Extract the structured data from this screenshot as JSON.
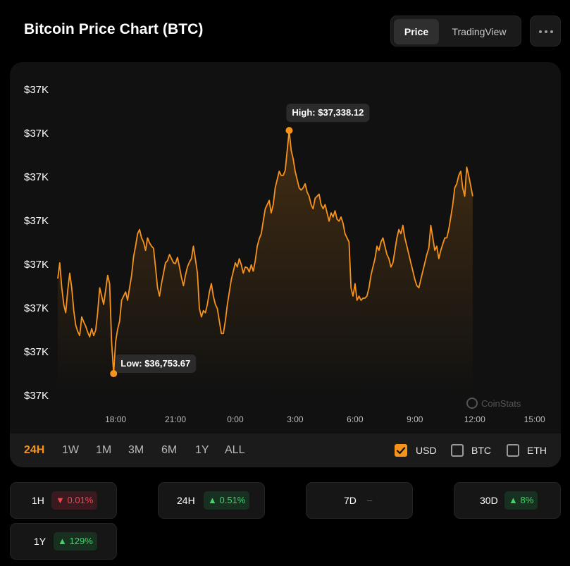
{
  "header": {
    "title": "Bitcoin Price Chart (BTC)",
    "tabs": [
      "Price",
      "TradingView"
    ],
    "active_tab": "Price"
  },
  "chart_data": {
    "type": "area",
    "title": "Bitcoin Price Chart (BTC)",
    "currency": "USD",
    "y_tick_labels": [
      "$37K",
      "$37K",
      "$37K",
      "$37K",
      "$37K",
      "$37K",
      "$37K",
      "$37K"
    ],
    "x_tick_labels": [
      "18:00",
      "21:00",
      "0:00",
      "3:00",
      "6:00",
      "9:00",
      "12:00",
      "15:00"
    ],
    "x_range_hours": [
      15.1,
      39.4
    ],
    "y_range": [
      36730,
      37440
    ],
    "line_color": "#f7931a",
    "high": {
      "label": "High: $37,338.12",
      "value": 37338.12,
      "time_hours": 26.7
    },
    "low": {
      "label": "Low: $36,753.67",
      "value": 36753.67,
      "time_hours": 17.9
    },
    "watermark": "CoinStats",
    "series": [
      {
        "name": "BTC/USD",
        "points": [
          [
            15.1,
            36982
          ],
          [
            15.2,
            37020
          ],
          [
            15.3,
            36960
          ],
          [
            15.4,
            36920
          ],
          [
            15.5,
            36900
          ],
          [
            15.6,
            36955
          ],
          [
            15.7,
            36995
          ],
          [
            15.8,
            36960
          ],
          [
            15.9,
            36905
          ],
          [
            16.0,
            36870
          ],
          [
            16.1,
            36855
          ],
          [
            16.2,
            36845
          ],
          [
            16.3,
            36890
          ],
          [
            16.4,
            36878
          ],
          [
            16.5,
            36868
          ],
          [
            16.6,
            36853
          ],
          [
            16.7,
            36842
          ],
          [
            16.8,
            36862
          ],
          [
            16.9,
            36845
          ],
          [
            17.0,
            36858
          ],
          [
            17.1,
            36900
          ],
          [
            17.2,
            36960
          ],
          [
            17.3,
            36940
          ],
          [
            17.4,
            36920
          ],
          [
            17.5,
            36955
          ],
          [
            17.6,
            36990
          ],
          [
            17.7,
            36970
          ],
          [
            17.8,
            36830
          ],
          [
            17.9,
            36753.67
          ],
          [
            18.0,
            36830
          ],
          [
            18.1,
            36860
          ],
          [
            18.2,
            36880
          ],
          [
            18.3,
            36930
          ],
          [
            18.4,
            36940
          ],
          [
            18.5,
            36950
          ],
          [
            18.6,
            36930
          ],
          [
            18.7,
            36960
          ],
          [
            18.8,
            36990
          ],
          [
            18.9,
            37035
          ],
          [
            19.0,
            37060
          ],
          [
            19.1,
            37090
          ],
          [
            19.2,
            37100
          ],
          [
            19.3,
            37080
          ],
          [
            19.4,
            37070
          ],
          [
            19.5,
            37050
          ],
          [
            19.6,
            37080
          ],
          [
            19.7,
            37068
          ],
          [
            19.8,
            37060
          ],
          [
            19.9,
            37055
          ],
          [
            20.0,
            37010
          ],
          [
            20.1,
            36960
          ],
          [
            20.2,
            36940
          ],
          [
            20.3,
            36970
          ],
          [
            20.4,
            36995
          ],
          [
            20.5,
            37020
          ],
          [
            20.6,
            37025
          ],
          [
            20.7,
            37040
          ],
          [
            20.8,
            37030
          ],
          [
            20.9,
            37020
          ],
          [
            21.0,
            37018
          ],
          [
            21.1,
            37033
          ],
          [
            21.2,
            37010
          ],
          [
            21.3,
            36985
          ],
          [
            21.4,
            36965
          ],
          [
            21.5,
            36990
          ],
          [
            21.6,
            37010
          ],
          [
            21.7,
            37022
          ],
          [
            21.8,
            37030
          ],
          [
            21.9,
            37060
          ],
          [
            22.0,
            37028
          ],
          [
            22.1,
            36995
          ],
          [
            22.2,
            36910
          ],
          [
            22.3,
            36890
          ],
          [
            22.4,
            36905
          ],
          [
            22.5,
            36900
          ],
          [
            22.6,
            36920
          ],
          [
            22.7,
            36950
          ],
          [
            22.8,
            36970
          ],
          [
            22.9,
            36940
          ],
          [
            23.0,
            36920
          ],
          [
            23.1,
            36910
          ],
          [
            23.2,
            36880
          ],
          [
            23.3,
            36850
          ],
          [
            23.4,
            36850
          ],
          [
            23.5,
            36880
          ],
          [
            23.6,
            36920
          ],
          [
            23.7,
            36950
          ],
          [
            23.8,
            36980
          ],
          [
            23.9,
            37000
          ],
          [
            24.0,
            37020
          ],
          [
            24.1,
            37010
          ],
          [
            24.2,
            37030
          ],
          [
            24.3,
            37015
          ],
          [
            24.4,
            36995
          ],
          [
            24.5,
            37010
          ],
          [
            24.6,
            37008
          ],
          [
            24.7,
            36998
          ],
          [
            24.8,
            37015
          ],
          [
            24.9,
            37000
          ],
          [
            25.0,
            37025
          ],
          [
            25.1,
            37060
          ],
          [
            25.2,
            37078
          ],
          [
            25.3,
            37090
          ],
          [
            25.4,
            37120
          ],
          [
            25.5,
            37150
          ],
          [
            25.6,
            37160
          ],
          [
            25.7,
            37170
          ],
          [
            25.8,
            37140
          ],
          [
            25.9,
            37160
          ],
          [
            26.0,
            37200
          ],
          [
            26.1,
            37220
          ],
          [
            26.2,
            37240
          ],
          [
            26.3,
            37230
          ],
          [
            26.4,
            37230
          ],
          [
            26.5,
            37242
          ],
          [
            26.6,
            37290
          ],
          [
            26.7,
            37338.12
          ],
          [
            26.8,
            37290
          ],
          [
            26.9,
            37270
          ],
          [
            27.0,
            37240
          ],
          [
            27.1,
            37220
          ],
          [
            27.2,
            37200
          ],
          [
            27.3,
            37195
          ],
          [
            27.4,
            37200
          ],
          [
            27.5,
            37210
          ],
          [
            27.6,
            37190
          ],
          [
            27.7,
            37180
          ],
          [
            27.8,
            37160
          ],
          [
            27.9,
            37150
          ],
          [
            28.0,
            37175
          ],
          [
            28.1,
            37180
          ],
          [
            28.2,
            37185
          ],
          [
            28.3,
            37160
          ],
          [
            28.4,
            37150
          ],
          [
            28.5,
            37160
          ],
          [
            28.6,
            37140
          ],
          [
            28.7,
            37120
          ],
          [
            28.8,
            37140
          ],
          [
            28.9,
            37130
          ],
          [
            29.0,
            37145
          ],
          [
            29.1,
            37125
          ],
          [
            29.2,
            37120
          ],
          [
            29.3,
            37130
          ],
          [
            29.4,
            37115
          ],
          [
            29.5,
            37090
          ],
          [
            29.6,
            37080
          ],
          [
            29.7,
            37070
          ],
          [
            29.8,
            36960
          ],
          [
            29.9,
            36940
          ],
          [
            30.0,
            36970
          ],
          [
            30.1,
            36930
          ],
          [
            30.2,
            36940
          ],
          [
            30.3,
            36930
          ],
          [
            30.4,
            36935
          ],
          [
            30.5,
            36935
          ],
          [
            30.6,
            36940
          ],
          [
            30.7,
            36960
          ],
          [
            30.8,
            36990
          ],
          [
            30.9,
            37010
          ],
          [
            31.0,
            37030
          ],
          [
            31.1,
            37060
          ],
          [
            31.2,
            37050
          ],
          [
            31.3,
            37070
          ],
          [
            31.4,
            37080
          ],
          [
            31.5,
            37060
          ],
          [
            31.6,
            37040
          ],
          [
            31.7,
            37030
          ],
          [
            31.8,
            37010
          ],
          [
            31.9,
            37020
          ],
          [
            32.0,
            37050
          ],
          [
            32.1,
            37080
          ],
          [
            32.2,
            37100
          ],
          [
            32.3,
            37090
          ],
          [
            32.4,
            37110
          ],
          [
            32.5,
            37080
          ],
          [
            32.6,
            37060
          ],
          [
            32.7,
            37040
          ],
          [
            32.8,
            37020
          ],
          [
            32.9,
            37000
          ],
          [
            33.0,
            36980
          ],
          [
            33.1,
            36965
          ],
          [
            33.2,
            36960
          ],
          [
            33.3,
            36980
          ],
          [
            33.4,
            37000
          ],
          [
            33.5,
            37020
          ],
          [
            33.6,
            37040
          ],
          [
            33.7,
            37055
          ],
          [
            33.8,
            37110
          ],
          [
            33.9,
            37080
          ],
          [
            34.0,
            37050
          ],
          [
            34.1,
            37060
          ],
          [
            34.2,
            37030
          ],
          [
            34.3,
            37050
          ],
          [
            34.4,
            37065
          ],
          [
            34.5,
            37080
          ],
          [
            34.6,
            37080
          ],
          [
            34.7,
            37100
          ],
          [
            34.8,
            37130
          ],
          [
            34.9,
            37160
          ],
          [
            35.0,
            37200
          ],
          [
            35.1,
            37210
          ],
          [
            35.2,
            37230
          ],
          [
            35.3,
            37240
          ],
          [
            35.4,
            37200
          ],
          [
            35.5,
            37180
          ],
          [
            35.6,
            37250
          ],
          [
            35.7,
            37230
          ],
          [
            35.8,
            37205
          ],
          [
            35.9,
            37180
          ]
        ]
      }
    ]
  },
  "time_ranges": [
    "24H",
    "1W",
    "1M",
    "3M",
    "6M",
    "1Y",
    "ALL"
  ],
  "active_range": "24H",
  "currencies": [
    {
      "label": "USD",
      "checked": true
    },
    {
      "label": "BTC",
      "checked": false
    },
    {
      "label": "ETH",
      "checked": false
    }
  ],
  "changes": [
    {
      "period": "1H",
      "value": "0.01%",
      "direction": "down",
      "arrow": "▼"
    },
    {
      "period": "24H",
      "value": "0.51%",
      "direction": "up",
      "arrow": "▲"
    },
    {
      "period": "7D",
      "value": "–",
      "direction": "flat",
      "arrow": ""
    },
    {
      "period": "30D",
      "value": "8%",
      "direction": "up",
      "arrow": "▲"
    },
    {
      "period": "1Y",
      "value": "129%",
      "direction": "up",
      "arrow": "▲"
    }
  ]
}
